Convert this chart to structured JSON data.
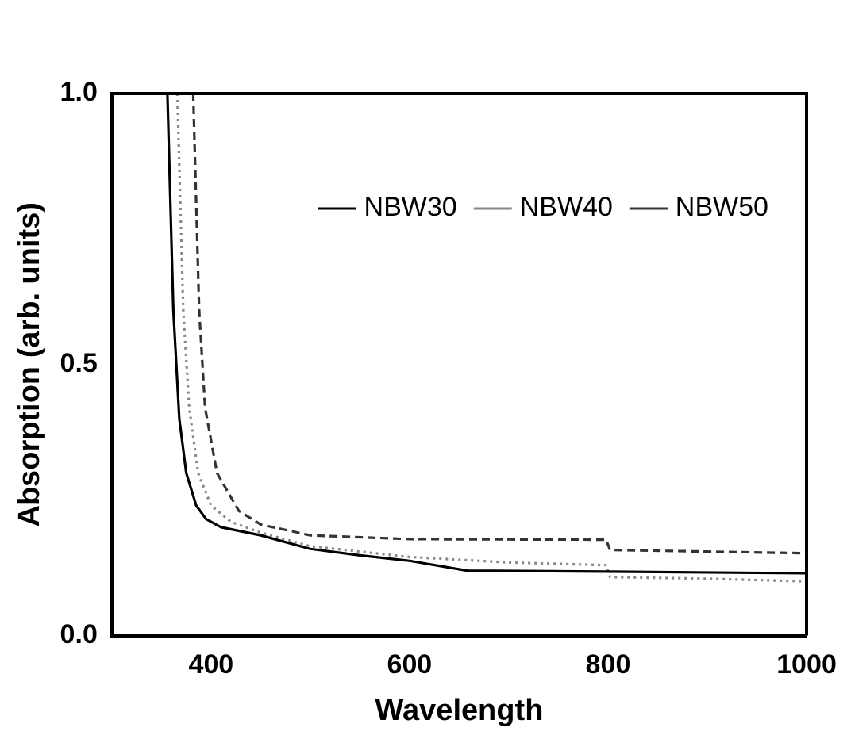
{
  "chart_data": {
    "type": "line",
    "xlabel": "Wavelength",
    "ylabel": "Absorption (arb. units)",
    "xlim": [
      300,
      1000
    ],
    "xticks": [
      400,
      600,
      800,
      1000
    ],
    "ylim": [
      0,
      1
    ],
    "yticks": [
      {
        "value": 0,
        "label": "0.0"
      },
      {
        "value": 0.5,
        "label": "0.5"
      },
      {
        "value": 1,
        "label": "1.0"
      }
    ],
    "grid": false,
    "legend": "top right",
    "marker": "none",
    "series": [
      {
        "name": "NBW30",
        "color": "#000000",
        "line_style": "solid",
        "x": [
          356,
          362,
          368,
          375,
          385,
          395,
          410,
          450,
          500,
          550,
          600,
          658,
          800,
          1000
        ],
        "values": [
          1.0,
          0.6,
          0.4,
          0.3,
          0.24,
          0.215,
          0.2,
          0.185,
          0.16,
          0.148,
          0.138,
          0.12,
          0.118,
          0.115
        ]
      },
      {
        "name": "NBW40",
        "color": "#888888",
        "line_style": "dotted",
        "x": [
          366,
          372,
          378,
          387,
          400,
          420,
          450,
          500,
          600,
          700,
          798,
          802,
          900,
          1000
        ],
        "values": [
          1.0,
          0.6,
          0.42,
          0.3,
          0.24,
          0.21,
          0.19,
          0.165,
          0.145,
          0.135,
          0.13,
          0.108,
          0.105,
          0.1
        ]
      },
      {
        "name": "NBW50",
        "color": "#333333",
        "line_style": "dashed",
        "x": [
          382,
          388,
          394,
          406,
          428,
          450,
          500,
          600,
          798,
          802,
          900,
          1000
        ],
        "values": [
          1.0,
          0.6,
          0.42,
          0.3,
          0.23,
          0.205,
          0.185,
          0.178,
          0.177,
          0.158,
          0.155,
          0.152
        ]
      }
    ]
  }
}
